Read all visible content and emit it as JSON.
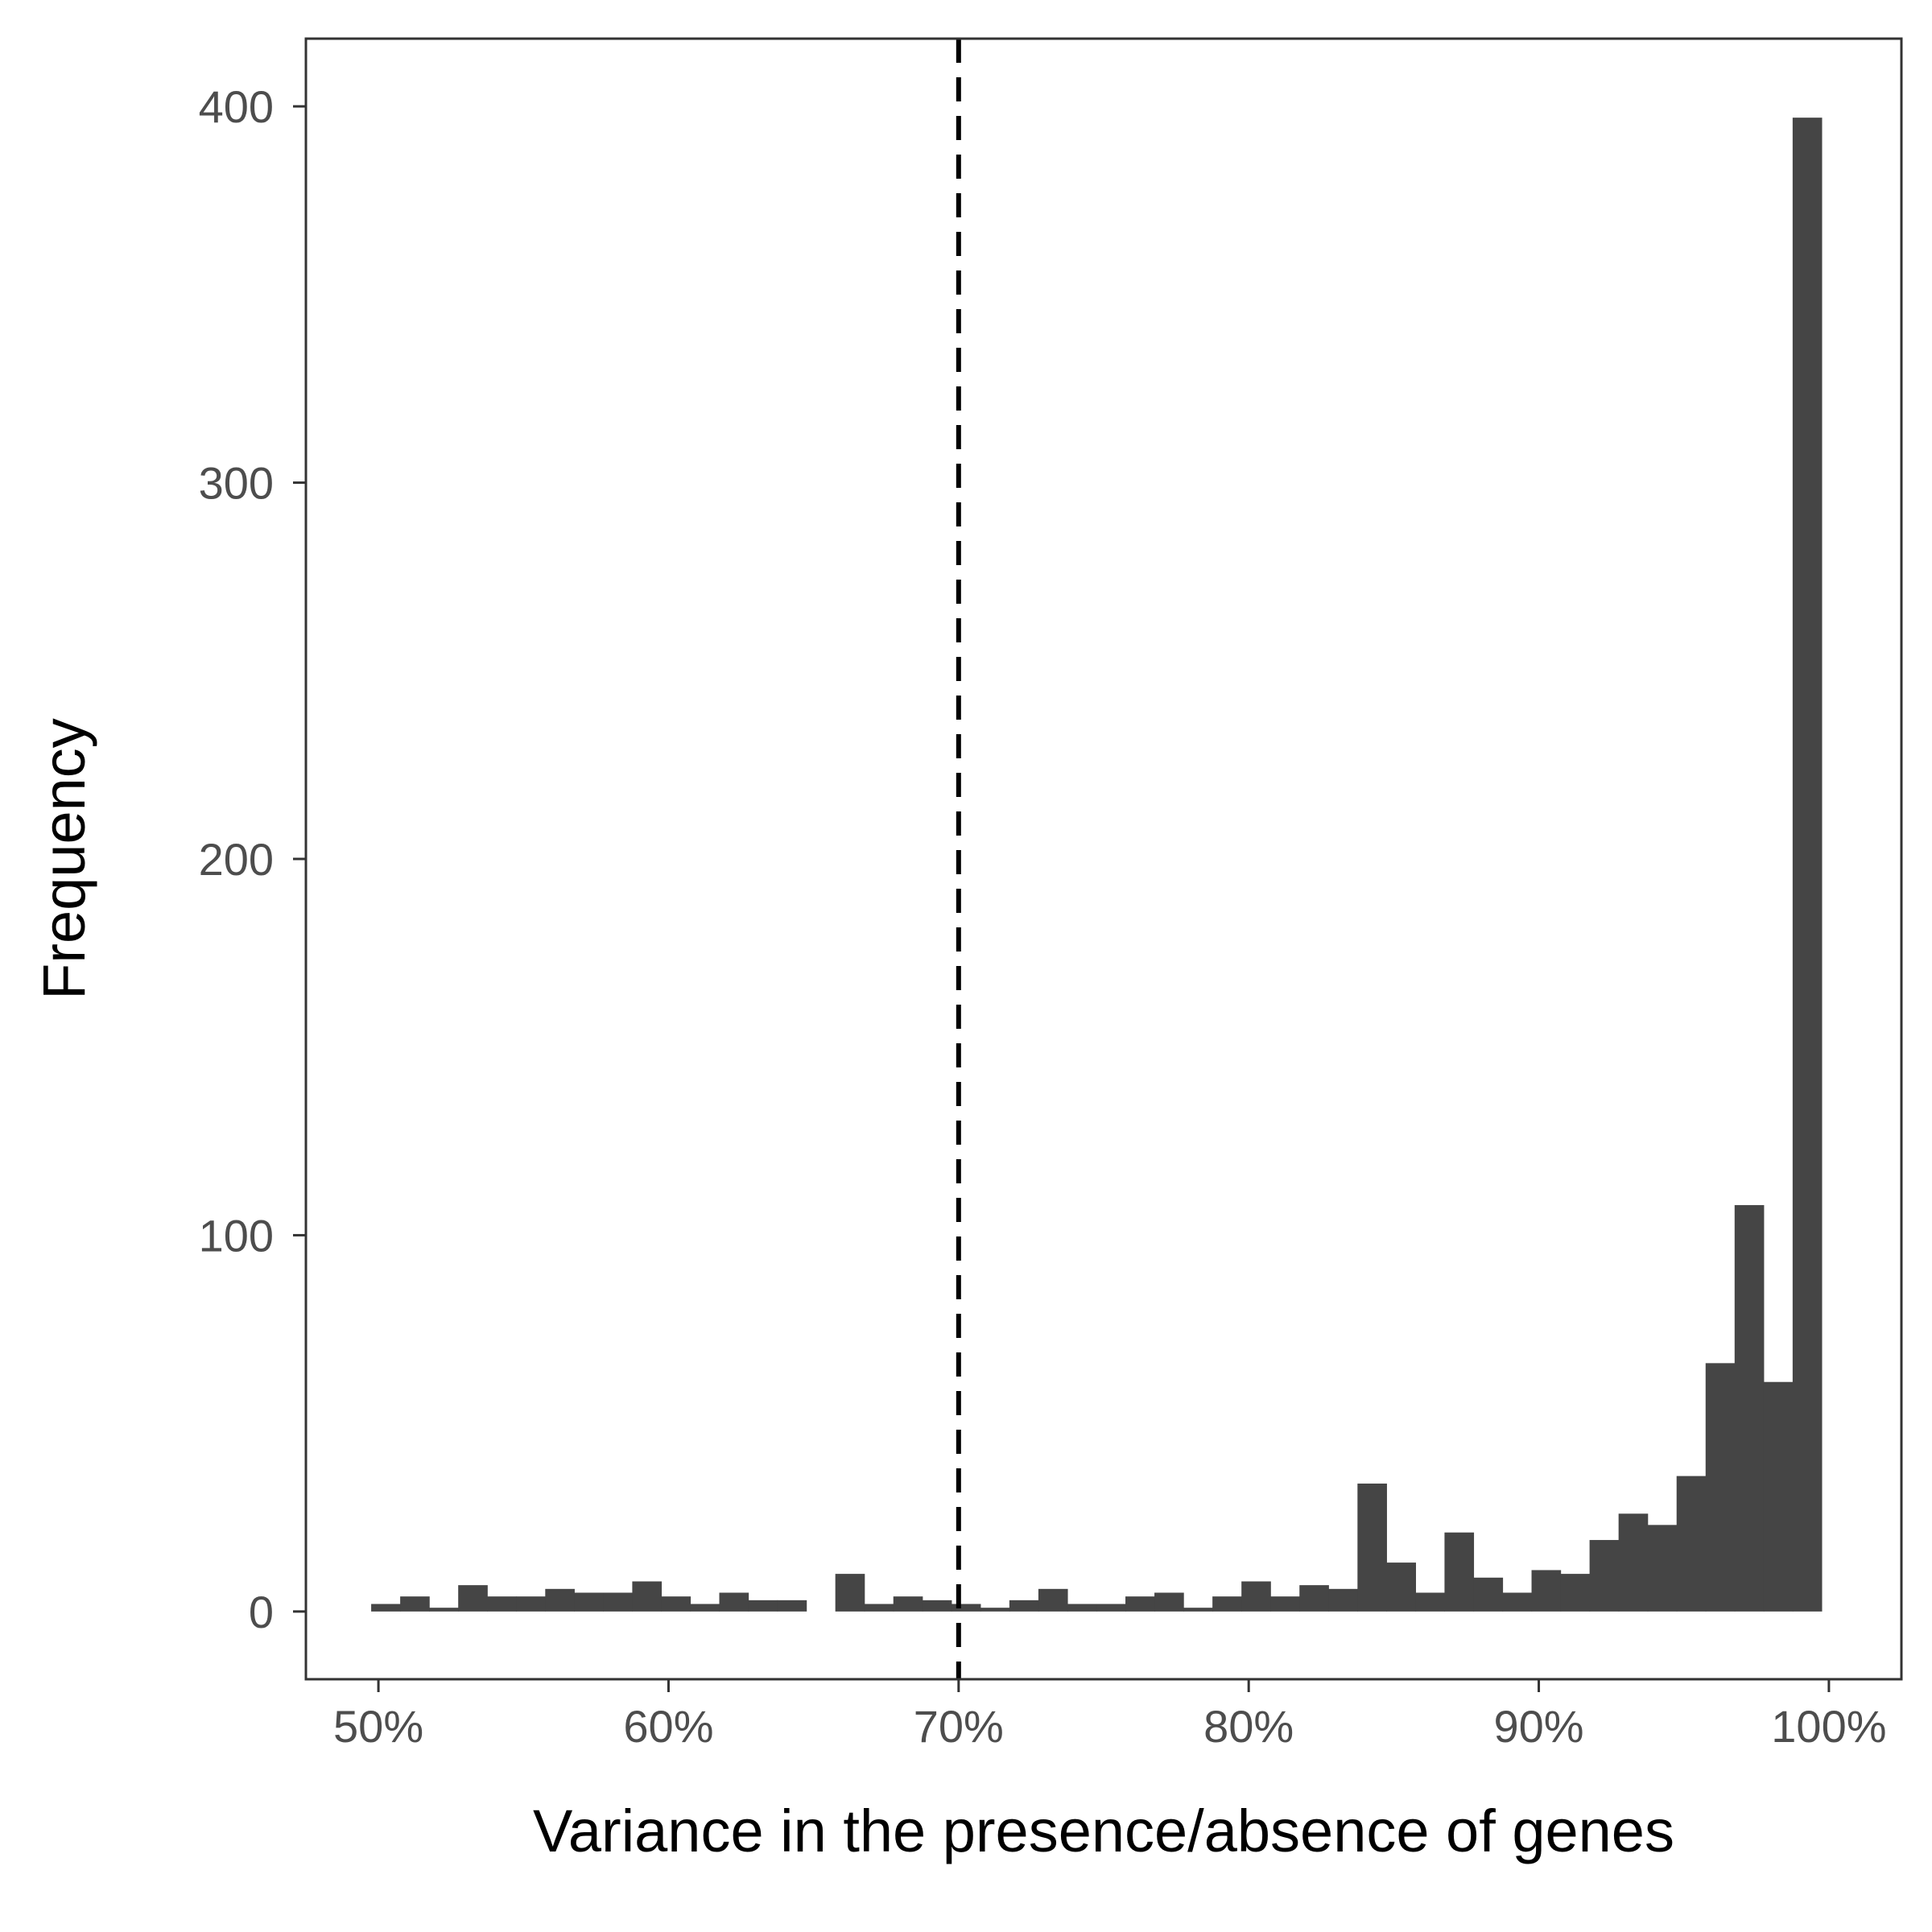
{
  "chart_data": {
    "type": "bar",
    "title": "",
    "xlabel": "Variance in the presence/absence of genes",
    "ylabel": "Frequency",
    "xlim": [
      47.5,
      102.5
    ],
    "ylim": [
      -18,
      418
    ],
    "x_ticks": [
      {
        "value": 50,
        "label": "50%"
      },
      {
        "value": 60,
        "label": "60%"
      },
      {
        "value": 70,
        "label": "70%"
      },
      {
        "value": 80,
        "label": "80%"
      },
      {
        "value": 90,
        "label": "90%"
      },
      {
        "value": 100,
        "label": "100%"
      }
    ],
    "y_ticks": [
      {
        "value": 0,
        "label": "0"
      },
      {
        "value": 100,
        "label": "100"
      },
      {
        "value": 200,
        "label": "200"
      },
      {
        "value": 300,
        "label": "300"
      },
      {
        "value": 400,
        "label": "400"
      }
    ],
    "bin_width": 1,
    "bin_centers": [
      50.25,
      51.25,
      52.25,
      53.25,
      54.25,
      55.25,
      56.25,
      57.25,
      58.25,
      59.25,
      60.25,
      61.25,
      62.25,
      63.25,
      64.25,
      65.25,
      66.25,
      67.25,
      68.25,
      69.25,
      70.25,
      71.25,
      72.25,
      73.25,
      74.25,
      75.25,
      76.25,
      77.25,
      78.25,
      79.25,
      80.25,
      81.25,
      82.25,
      83.25,
      84.25,
      85.25,
      86.25,
      87.25,
      88.25,
      89.25,
      90.25,
      91.25,
      92.25,
      93.25,
      94.25,
      95.25,
      96.25,
      97.25,
      98.25,
      99.25
    ],
    "values": [
      2,
      4,
      1,
      7,
      4,
      4,
      6,
      5,
      5,
      8,
      4,
      2,
      5,
      3,
      3,
      0,
      10,
      2,
      4,
      3,
      2,
      1,
      3,
      6,
      2,
      2,
      4,
      5,
      1,
      4,
      8,
      4,
      7,
      6,
      34,
      13,
      5,
      21,
      9,
      5,
      11,
      10,
      19,
      26,
      23,
      36,
      66,
      108,
      61,
      397
    ],
    "reference_line": {
      "x": 70,
      "style": "dashed",
      "color": "#000000"
    },
    "bar_color": "#454545",
    "grid": false,
    "legend": "none"
  }
}
